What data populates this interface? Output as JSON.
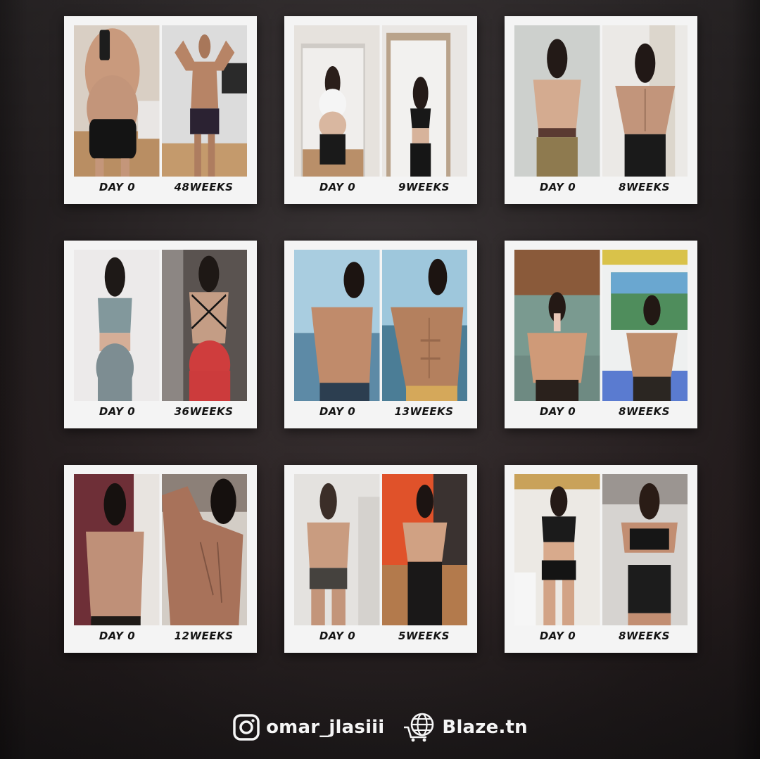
{
  "cards": [
    {
      "before_label": "DAY 0",
      "after_label": "48WEEKS",
      "before_photo": "man-mirror-selfie-before-photo",
      "after_photo": "man-flexing-after-photo"
    },
    {
      "before_label": "DAY 0",
      "after_label": "9WEEKS",
      "before_photo": "woman-mirror-selfie-before-photo",
      "after_photo": "woman-mirror-selfie-after-photo"
    },
    {
      "before_label": "DAY 0",
      "after_label": "8WEEKS",
      "before_photo": "man-back-before-photo",
      "after_photo": "man-back-after-photo"
    },
    {
      "before_label": "DAY 0",
      "after_label": "36WEEKS",
      "before_photo": "woman-back-before-photo",
      "after_photo": "woman-back-after-photo"
    },
    {
      "before_label": "DAY 0",
      "after_label": "13WEEKS",
      "before_photo": "man-beach-before-photo",
      "after_photo": "man-beach-after-photo"
    },
    {
      "before_label": "DAY 0",
      "after_label": "8WEEKS",
      "before_photo": "man-gym-selfie-before-photo",
      "after_photo": "man-gym-selfie-after-photo"
    },
    {
      "before_label": "DAY 0",
      "after_label": "12WEEKS",
      "before_photo": "young-man-back-before-photo",
      "after_photo": "young-man-back-after-photo"
    },
    {
      "before_label": "DAY 0",
      "after_label": "5WEEKS",
      "before_photo": "man-back-mirror-before-photo",
      "after_photo": "man-back-mirror-after-photo"
    },
    {
      "before_label": "DAY 0",
      "after_label": "8WEEKS",
      "before_photo": "woman-gym-before-photo",
      "after_photo": "woman-gym-after-photo"
    }
  ],
  "footer": {
    "instagram_handle": "omar_jlasiii",
    "instagram_icon": "instagram-icon",
    "brand": "Blaze.tn",
    "brand_icon": "globe-cart-icon"
  },
  "colors": {
    "card_bg": "#f4f4f4",
    "label_text": "#141414",
    "footer_text": "#f5f5f5",
    "background": "#2a2526"
  }
}
